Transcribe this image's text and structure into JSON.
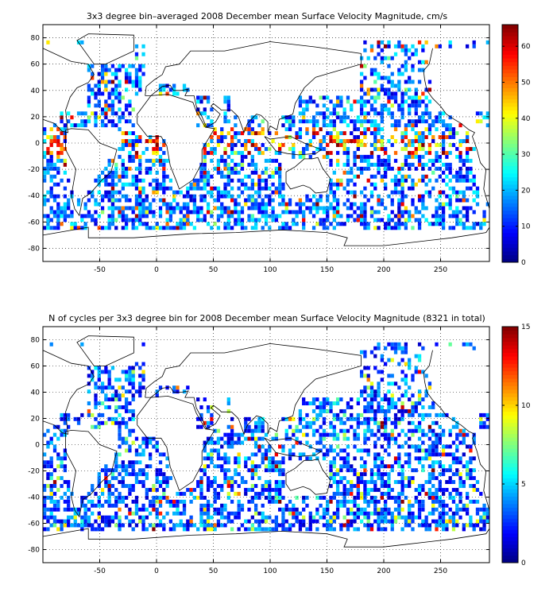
{
  "chart_data": [
    {
      "type": "heatmap",
      "title": "3x3 degree bin–averaged 2008 December mean Surface Velocity Magnitude, cm/s",
      "xlabel": "",
      "ylabel": "",
      "xlim": [
        -100,
        293
      ],
      "ylim": [
        -90,
        90
      ],
      "xticks": [
        "-50",
        "0",
        "50",
        "100",
        "150",
        "200",
        "250"
      ],
      "xtick_values": [
        -50,
        0,
        50,
        100,
        150,
        200,
        250
      ],
      "yticks": [
        "80",
        "60",
        "40",
        "20",
        "0",
        "-20",
        "-40",
        "-60",
        "-80"
      ],
      "ytick_values": [
        80,
        60,
        40,
        20,
        0,
        -20,
        -40,
        -60,
        -80
      ],
      "grid": true,
      "colorbar": {
        "min": 0,
        "max": 66,
        "ticks": [
          "60",
          "50",
          "40",
          "30",
          "20",
          "10",
          "0"
        ],
        "tick_values": [
          60,
          50,
          40,
          30,
          20,
          10,
          0
        ]
      },
      "bin_deg": 3,
      "colormap": "jet"
    },
    {
      "type": "heatmap",
      "title": "N of cycles per 3x3 degree bin for 2008 December mean Surface Velocity Magnitude (8321 in total)",
      "xlabel": "",
      "ylabel": "",
      "xlim": [
        -100,
        293
      ],
      "ylim": [
        -90,
        90
      ],
      "xticks": [
        "-50",
        "0",
        "50",
        "100",
        "150",
        "200",
        "250"
      ],
      "xtick_values": [
        -50,
        0,
        50,
        100,
        150,
        200,
        250
      ],
      "yticks": [
        "80",
        "60",
        "40",
        "20",
        "0",
        "-20",
        "-40",
        "-60",
        "-80"
      ],
      "ytick_values": [
        80,
        60,
        40,
        20,
        0,
        -20,
        -40,
        -60,
        -80
      ],
      "grid": true,
      "colorbar": {
        "min": 0,
        "max": 15,
        "ticks": [
          "15",
          "10",
          "5",
          "0"
        ],
        "tick_values": [
          15,
          10,
          5,
          0
        ]
      },
      "bin_deg": 3,
      "colormap": "jet"
    }
  ]
}
